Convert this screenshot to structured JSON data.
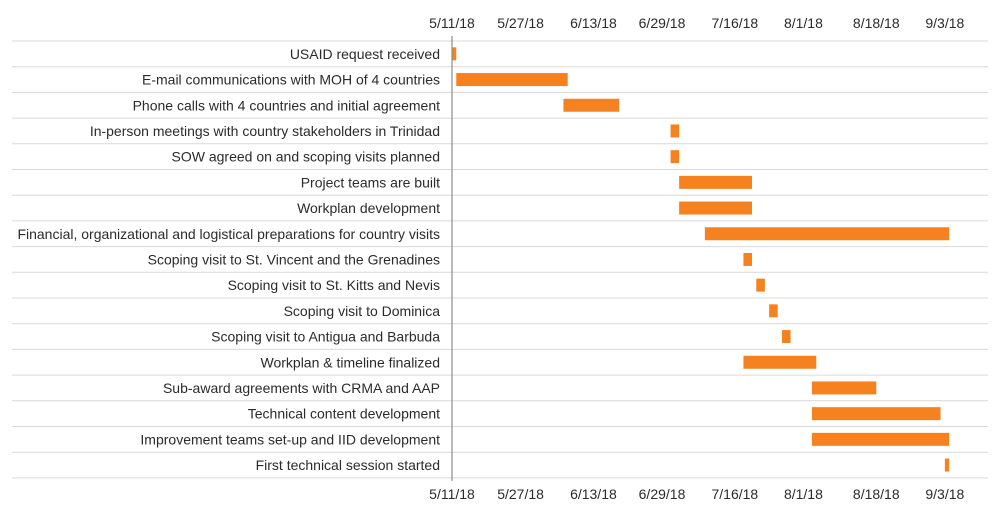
{
  "colors": {
    "bar": "#f5821f",
    "grid": "#d9d9d9",
    "axis": "#8c8c8c",
    "text": "#2b2b2b"
  },
  "chart_data": {
    "type": "bar",
    "orientation": "horizontal-gantt",
    "title": "",
    "xlabel": "",
    "ylabel": "",
    "x_axis": {
      "type": "date",
      "range": [
        "2018-05-11",
        "2018-09-07"
      ],
      "tick_labels": [
        "5/11/18",
        "5/27/18",
        "6/13/18",
        "6/29/18",
        "7/16/18",
        "8/1/18",
        "8/18/18",
        "9/3/18"
      ],
      "tick_dates": [
        "2018-05-11",
        "2018-05-27",
        "2018-06-13",
        "2018-06-29",
        "2018-07-16",
        "2018-08-01",
        "2018-08-18",
        "2018-09-03"
      ],
      "positions": [
        "top",
        "bottom"
      ]
    },
    "grid": true,
    "tasks": [
      {
        "label": "USAID request received",
        "start": "2018-05-11",
        "end": "2018-05-12"
      },
      {
        "label": "E-mail communications with MOH of 4 countries",
        "start": "2018-05-12",
        "end": "2018-06-07"
      },
      {
        "label": "Phone calls with 4 countries and initial agreement",
        "start": "2018-06-06",
        "end": "2018-06-19"
      },
      {
        "label": "In-person meetings with country stakeholders in Trinidad",
        "start": "2018-07-01",
        "end": "2018-07-03"
      },
      {
        "label": "SOW agreed on and scoping visits planned",
        "start": "2018-07-01",
        "end": "2018-07-03"
      },
      {
        "label": "Project teams are built",
        "start": "2018-07-03",
        "end": "2018-07-20"
      },
      {
        "label": "Workplan development",
        "start": "2018-07-03",
        "end": "2018-07-20"
      },
      {
        "label": "Financial, organizational and logistical preparations for country visits",
        "start": "2018-07-09",
        "end": "2018-09-04"
      },
      {
        "label": "Scoping visit to St. Vincent and the Grenadines",
        "start": "2018-07-18",
        "end": "2018-07-20"
      },
      {
        "label": "Scoping visit to St. Kitts and Nevis",
        "start": "2018-07-21",
        "end": "2018-07-23"
      },
      {
        "label": "Scoping visit to Dominica",
        "start": "2018-07-24",
        "end": "2018-07-26"
      },
      {
        "label": "Scoping visit to Antigua and Barbuda",
        "start": "2018-07-27",
        "end": "2018-07-29"
      },
      {
        "label": "Workplan & timeline finalized",
        "start": "2018-07-18",
        "end": "2018-08-04"
      },
      {
        "label": "Sub-award agreements with CRMA and AAP",
        "start": "2018-08-03",
        "end": "2018-08-18"
      },
      {
        "label": "Technical content development",
        "start": "2018-08-03",
        "end": "2018-09-02"
      },
      {
        "label": "Improvement teams set-up and IID development",
        "start": "2018-08-03",
        "end": "2018-09-04"
      },
      {
        "label": "First technical session started",
        "start": "2018-09-03",
        "end": "2018-09-04"
      }
    ]
  }
}
